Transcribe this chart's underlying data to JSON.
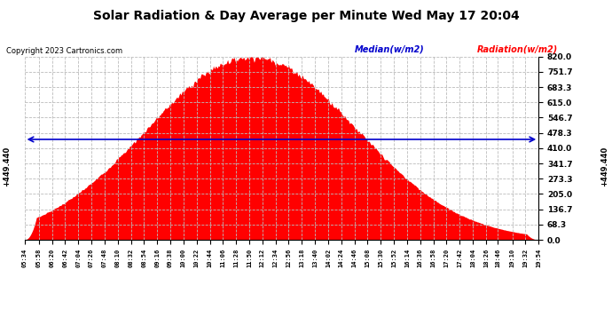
{
  "title": "Solar Radiation & Day Average per Minute Wed May 17 20:04",
  "copyright": "Copyright 2023 Cartronics.com",
  "median_label": "Median(w/m2)",
  "radiation_label": "Radiation(w/m2)",
  "median_value": 449.44,
  "median_text": "+449.440",
  "y_min": 0.0,
  "y_max": 820.0,
  "y_ticks": [
    0.0,
    68.3,
    136.7,
    205.0,
    273.3,
    341.7,
    410.0,
    478.3,
    546.7,
    615.0,
    683.3,
    751.7,
    820.0
  ],
  "background_color": "#ffffff",
  "fill_color": "#ff0000",
  "median_color": "#0000cc",
  "grid_color": "#bbbbbb",
  "title_color": "#000000",
  "peak_time_min": 714,
  "peak_value": 820.0,
  "curve_std": 175,
  "tick_labels": [
    "05:34",
    "05:58",
    "06:20",
    "06:42",
    "07:04",
    "07:26",
    "07:48",
    "08:10",
    "08:32",
    "08:54",
    "09:16",
    "09:38",
    "10:00",
    "10:22",
    "10:44",
    "11:06",
    "11:28",
    "11:50",
    "12:12",
    "12:34",
    "12:56",
    "13:18",
    "13:40",
    "14:02",
    "14:24",
    "14:46",
    "15:08",
    "15:30",
    "15:52",
    "16:14",
    "16:36",
    "16:58",
    "17:20",
    "17:42",
    "18:04",
    "18:26",
    "18:46",
    "19:10",
    "19:32",
    "19:54"
  ]
}
